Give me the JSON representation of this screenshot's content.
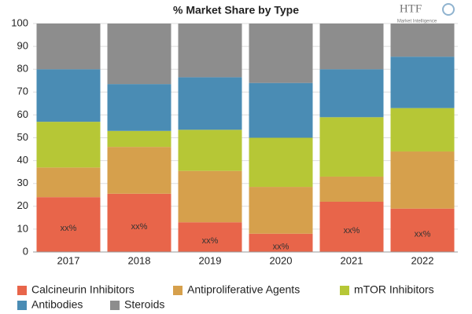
{
  "chart_data": {
    "type": "stacked_bar",
    "title": "% Market Share by Type",
    "logo": {
      "brand": "HTF",
      "tagline": "Market Intelligence"
    },
    "categories": [
      "2017",
      "2018",
      "2019",
      "2020",
      "2021",
      "2022"
    ],
    "series": [
      {
        "name": "Calcineurin Inhibitors",
        "color": "#e8654a",
        "values": [
          24,
          25.5,
          13,
          8,
          22,
          19
        ],
        "value_labels": [
          "xx%",
          "xx%",
          "xx%",
          "xx%",
          "xx%",
          "xx%"
        ]
      },
      {
        "name": "Antiproliferative Agents",
        "color": "#d6a04c",
        "values": [
          13,
          20.5,
          22.5,
          20.5,
          11,
          25
        ]
      },
      {
        "name": "mTOR Inhibitors",
        "color": "#b6c736",
        "values": [
          20,
          7,
          18,
          21.5,
          26,
          19
        ]
      },
      {
        "name": "Antibodies",
        "color": "#4a8cb4",
        "values": [
          23,
          20.5,
          23,
          24,
          21,
          22.5
        ]
      },
      {
        "name": "Steroids",
        "color": "#8d8d8d",
        "values": [
          20,
          26.5,
          23.5,
          26,
          20,
          14.5
        ]
      }
    ],
    "ylim": [
      0,
      100
    ],
    "yticks": [
      0,
      10,
      20,
      30,
      40,
      50,
      60,
      70,
      80,
      90,
      100
    ],
    "grid": true
  }
}
